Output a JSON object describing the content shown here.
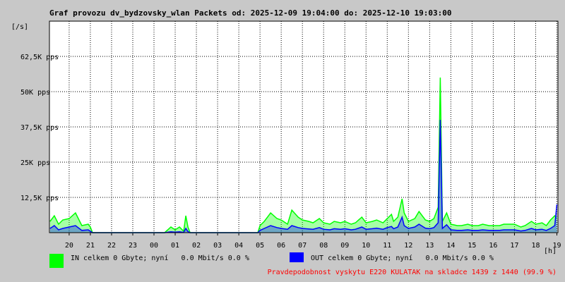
{
  "colors": {
    "background": "#c8c8c8",
    "plot_background": "#ffffff",
    "grid": "#000000",
    "in_series": "#00ff00",
    "out_series": "#0000ff",
    "note_text": "#ff0000"
  },
  "legend": {
    "in_label": "IN celkem 0 Gbyte; nyní   0.0 Mbit/s 0.0 %",
    "out_label": "OUT celkem 0 Gbyte; nyní   0.0 Mbit/s 0.0 %",
    "note": "Pravdepodobnost vyskytu E220 KULATAK na skladce 1439 z 1440 (99.9 %)"
  },
  "chart_data": {
    "type": "area",
    "title": "Graf provozu dv_bydzovsky_wlan Packets od: 2025-12-09 19:04:00 do: 2025-12-10 19:03:00",
    "ylabel": "[/s]",
    "xlabel": "[h]",
    "y_ticks": [
      "12,5K pps",
      "25K pps",
      "37,5K pps",
      "50K pps",
      "62,5K pps"
    ],
    "y_tick_values": [
      12500,
      25000,
      37500,
      50000,
      62500
    ],
    "ylim": [
      0,
      75000
    ],
    "x_ticks": [
      "20",
      "21",
      "22",
      "23",
      "00",
      "01",
      "02",
      "03",
      "04",
      "05",
      "06",
      "07",
      "08",
      "09",
      "10",
      "11",
      "12",
      "13",
      "14",
      "15",
      "16",
      "17",
      "18",
      "19"
    ],
    "xlim_hours": [
      19.07,
      43.05
    ],
    "grid": "dotted",
    "x": [
      19.1,
      19.3,
      19.5,
      19.7,
      20.0,
      20.3,
      20.6,
      20.9,
      21.0,
      21.1,
      21.5,
      22.0,
      22.5,
      23.0,
      23.5,
      24.0,
      24.3,
      24.5,
      24.8,
      25.0,
      25.2,
      25.4,
      25.5,
      25.6,
      25.7,
      26.0,
      26.5,
      27.0,
      27.5,
      28.0,
      28.5,
      28.8,
      28.9,
      29.0,
      29.2,
      29.5,
      29.8,
      30.0,
      30.3,
      30.5,
      30.8,
      31.0,
      31.3,
      31.5,
      31.8,
      32.0,
      32.3,
      32.5,
      32.8,
      33.0,
      33.3,
      33.5,
      33.8,
      34.0,
      34.3,
      34.5,
      34.8,
      35.0,
      35.2,
      35.3,
      35.5,
      35.7,
      35.8,
      36.0,
      36.3,
      36.5,
      36.8,
      37.0,
      37.2,
      37.4,
      37.5,
      37.6,
      37.8,
      38.0,
      38.3,
      38.5,
      38.8,
      39.0,
      39.3,
      39.5,
      39.8,
      40.0,
      40.3,
      40.5,
      40.8,
      41.0,
      41.3,
      41.5,
      41.8,
      42.0,
      42.3,
      42.5,
      42.7,
      42.9,
      43.0
    ],
    "series": [
      {
        "name": "IN",
        "values": [
          4000,
          6000,
          3000,
          4500,
          5000,
          7000,
          2500,
          3000,
          2000,
          0,
          0,
          0,
          0,
          0,
          0,
          0,
          0,
          0,
          2000,
          1000,
          2000,
          500,
          6000,
          2000,
          0,
          0,
          0,
          0,
          0,
          0,
          0,
          0,
          0,
          2500,
          4000,
          7000,
          5000,
          4500,
          3000,
          8000,
          5500,
          4500,
          4000,
          3500,
          5000,
          3500,
          3000,
          4000,
          3500,
          4000,
          3000,
          3500,
          5500,
          3500,
          4000,
          4500,
          3500,
          5000,
          6500,
          4000,
          5500,
          12000,
          7000,
          4000,
          5000,
          7500,
          4500,
          4000,
          5000,
          9000,
          55000,
          4000,
          7000,
          3000,
          2500,
          2500,
          3000,
          2500,
          2500,
          3000,
          2500,
          2500,
          2500,
          3000,
          3000,
          3000,
          2000,
          2500,
          4000,
          3000,
          3500,
          2500,
          4500,
          6000,
          5000
        ]
      },
      {
        "name": "OUT",
        "values": [
          1500,
          2500,
          1000,
          1500,
          2000,
          2500,
          800,
          1000,
          500,
          0,
          0,
          0,
          0,
          0,
          0,
          0,
          0,
          0,
          300,
          200,
          300,
          100,
          1500,
          400,
          0,
          0,
          0,
          0,
          0,
          0,
          0,
          0,
          0,
          800,
          1500,
          2500,
          1800,
          1500,
          1200,
          2500,
          1800,
          1500,
          1300,
          1200,
          1800,
          1200,
          1000,
          1400,
          1200,
          1400,
          1000,
          1200,
          2000,
          1200,
          1400,
          1600,
          1200,
          1800,
          2200,
          1400,
          2000,
          5500,
          2500,
          1500,
          2000,
          3000,
          1600,
          1400,
          1800,
          3500,
          40000,
          1500,
          2800,
          1000,
          800,
          800,
          1000,
          800,
          800,
          1000,
          800,
          800,
          800,
          1000,
          1000,
          1000,
          600,
          800,
          1500,
          1000,
          1200,
          800,
          1500,
          2500,
          10000
        ]
      }
    ]
  }
}
